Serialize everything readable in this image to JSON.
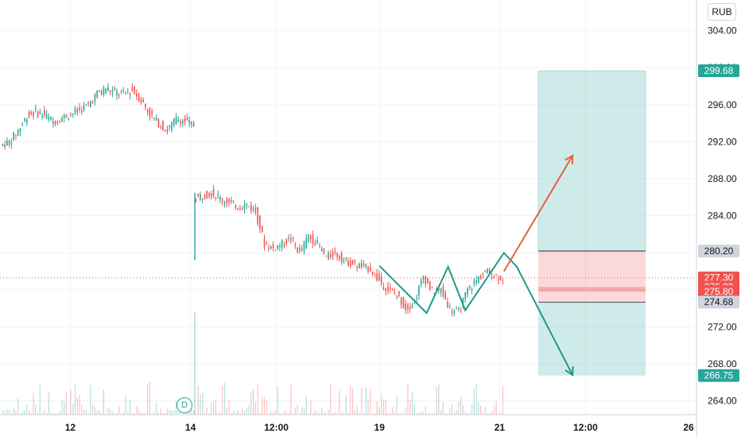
{
  "currency": "RUB",
  "dividend_marker": "D",
  "colors": {
    "up": "#26a69a",
    "down": "#ef5350",
    "profit_zone": "rgba(38,166,154,0.22)",
    "loss_zone": "rgba(239,83,80,0.22)",
    "arrow_up": "#e0633c",
    "zigzag": "#1e9a8a",
    "last_price_line": "#ef5350"
  },
  "chart_data": {
    "type": "candlestick",
    "y_range": [
      263.2,
      308.0
    ],
    "y_ticks": [
      264,
      268,
      272,
      276,
      280,
      284,
      288,
      292,
      296,
      300,
      304,
      308
    ],
    "x_ticks": [
      {
        "label": "12",
        "bar": 8
      },
      {
        "label": "14",
        "bar": 22
      },
      {
        "label": "12:00",
        "bar": 32
      },
      {
        "label": "19",
        "bar": 44
      },
      {
        "label": "21",
        "bar": 58
      },
      {
        "label": "12:00",
        "bar": 68
      },
      {
        "label": "26",
        "bar": 80
      }
    ],
    "price_tags": [
      {
        "value": 299.68,
        "label": "299.68",
        "style": "green"
      },
      {
        "value": 280.2,
        "label": "280.20",
        "style": "gray"
      },
      {
        "value": 277.3,
        "label": "277.30",
        "style": "red"
      },
      {
        "value": 276.32,
        "label": "276.32",
        "style": "red"
      },
      {
        "value": 275.8,
        "label": "275.80",
        "style": "red"
      },
      {
        "value": 274.68,
        "label": "274.68",
        "style": "gray"
      },
      {
        "value": 266.75,
        "label": "266.75",
        "style": "green"
      }
    ],
    "last_price": 277.3,
    "position": {
      "bar_start": 62.5,
      "bar_end": 75,
      "entry": 275.8,
      "entry_upper": 276.32,
      "target": 299.68,
      "stop": 280.2,
      "stop_lower": 274.68,
      "target_low": 266.75
    },
    "price_series_1": {
      "bar_start": 0,
      "bar_end": 22.5,
      "closes": [
        292.0,
        293.2,
        294.8,
        295.2,
        294.9,
        294.2,
        294.6,
        295.0,
        295.4,
        296.0,
        297.2,
        297.8,
        297.3,
        297.2,
        297.6,
        296.5,
        295.0,
        294.0,
        293.2,
        294.5,
        294.2,
        293.8
      ]
    },
    "price_series_2": {
      "bar_start": 22.5,
      "bar_end": 58.5,
      "closes": [
        286.2,
        286.5,
        285.9,
        285.4,
        285.0,
        285.2,
        284.5,
        281.0,
        280.5,
        281.0,
        281.5,
        280.0,
        281.8,
        281.0,
        279.5,
        280.0,
        279.2,
        278.8,
        278.5,
        278.3,
        277.0,
        276.0,
        275.5,
        274.0,
        274.8,
        277.5,
        275.8,
        276.0,
        274.0,
        273.5,
        276.0,
        277.0,
        278.0,
        277.6,
        277.3
      ]
    },
    "zigzag": [
      {
        "bar": 44,
        "price": 278.6
      },
      {
        "bar": 49.5,
        "price": 273.5
      },
      {
        "bar": 52.0,
        "price": 278.5
      },
      {
        "bar": 54.0,
        "price": 273.8
      },
      {
        "bar": 58.5,
        "price": 280.0
      },
      {
        "bar": 60.0,
        "price": 278.5
      },
      {
        "bar": 66.5,
        "price": 266.8
      }
    ],
    "arrow_up": [
      {
        "bar": 58.5,
        "price": 278.0
      },
      {
        "bar": 66.5,
        "price": 290.5
      }
    ]
  }
}
